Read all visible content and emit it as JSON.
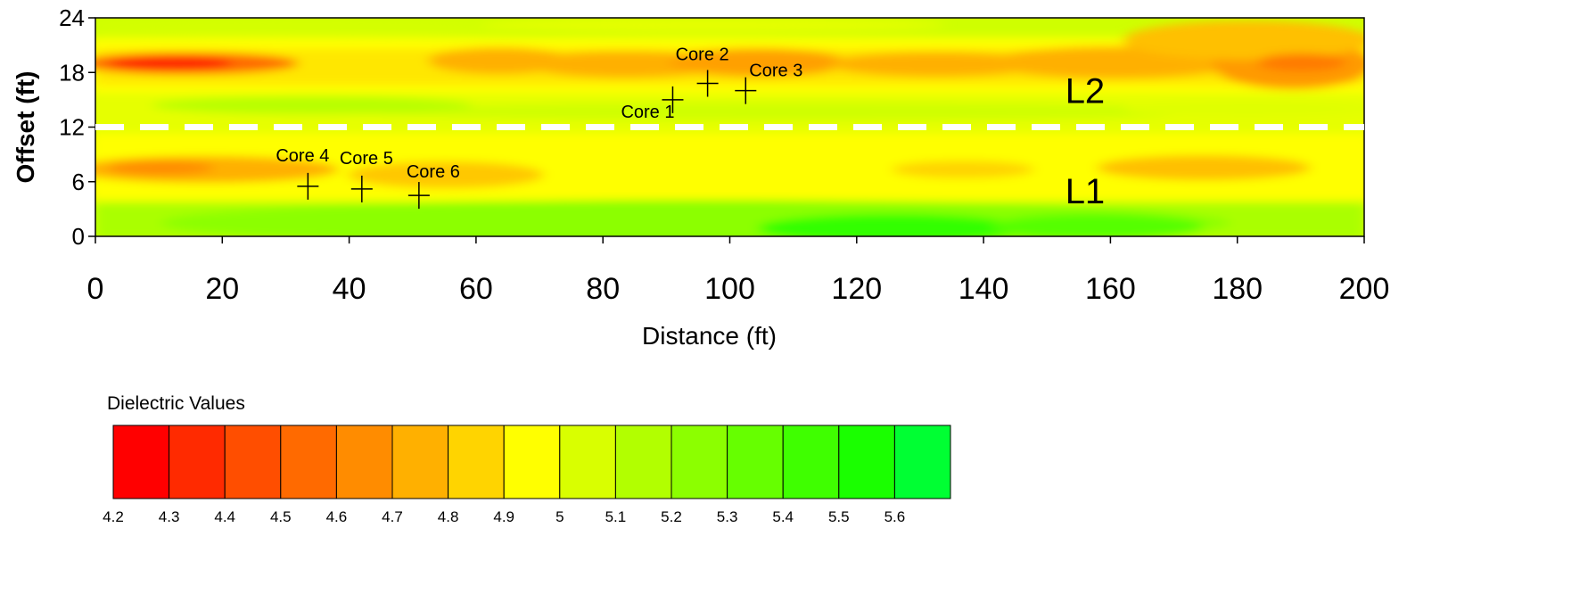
{
  "chart_data": {
    "type": "heatmap",
    "title": "",
    "xlabel": "Distance (ft)",
    "ylabel": "Offset (ft)",
    "xlim": [
      0,
      200
    ],
    "ylim": [
      0,
      24
    ],
    "x_ticks": [
      0,
      20,
      40,
      60,
      80,
      100,
      120,
      140,
      160,
      180,
      200
    ],
    "y_ticks": [
      0,
      6,
      12,
      18,
      24
    ],
    "grid": false,
    "colorbar": {
      "title": "Dielectric Values",
      "levels": [
        4.2,
        4.3,
        4.4,
        4.5,
        4.6,
        4.7,
        4.8,
        4.9,
        5,
        5.1,
        5.2,
        5.3,
        5.4,
        5.5,
        5.6
      ],
      "colors": [
        "#ff0000",
        "#ff2a00",
        "#ff4e00",
        "#ff6a00",
        "#ff8c00",
        "#ffb000",
        "#ffd400",
        "#ffff00",
        "#d9ff00",
        "#b2ff00",
        "#8cff00",
        "#66ff00",
        "#3fff00",
        "#1aff00",
        "#00ff33"
      ]
    },
    "lane_divider_offset": 12,
    "lane_labels": [
      {
        "text": "L2",
        "x": 156,
        "y": 16
      },
      {
        "text": "L1",
        "x": 156,
        "y": 5
      }
    ],
    "cores": [
      {
        "label": "Core 1",
        "x": 91,
        "y": 15
      },
      {
        "label": "Core 2",
        "x": 96.5,
        "y": 16.8
      },
      {
        "label": "Core 3",
        "x": 102.5,
        "y": 16
      },
      {
        "label": "Core 4",
        "x": 33.5,
        "y": 5.5
      },
      {
        "label": "Core 5",
        "x": 42,
        "y": 5.2
      },
      {
        "label": "Core 6",
        "x": 51,
        "y": 4.5
      }
    ]
  }
}
